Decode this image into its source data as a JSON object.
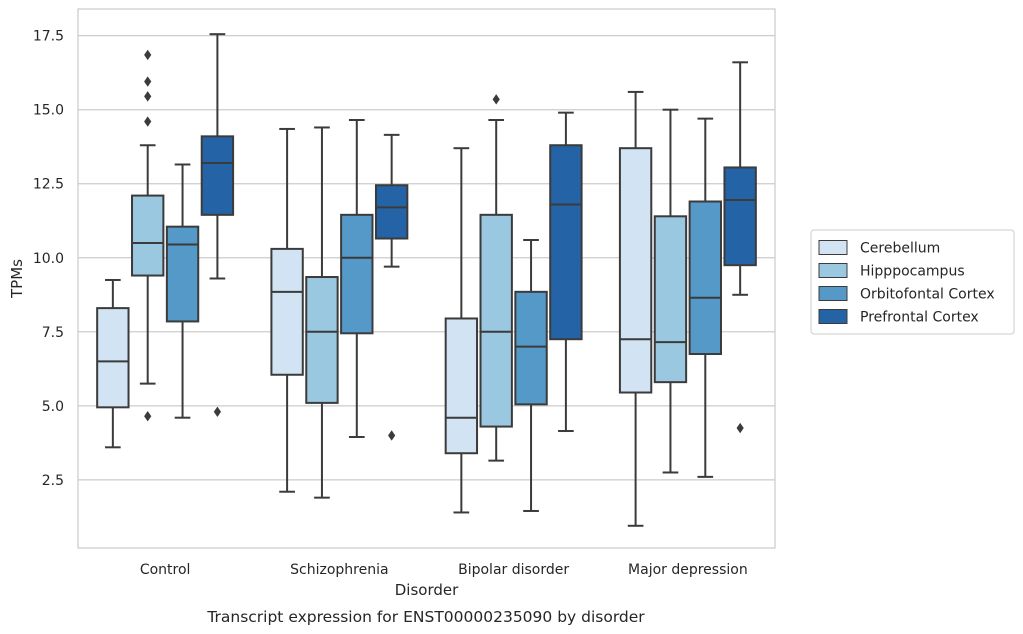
{
  "chart_data": {
    "type": "box",
    "title": "",
    "caption": "Transcript expression for ENST00000235090 by disorder",
    "xlabel": "Disorder",
    "ylabel": "TPMs",
    "ylim": [
      0.2,
      18.4
    ],
    "yticks": [
      2.5,
      5.0,
      7.5,
      10.0,
      12.5,
      15.0,
      17.5
    ],
    "ytick_labels": [
      "2.5",
      "5.0",
      "7.5",
      "10.0",
      "12.5",
      "15.0",
      "17.5"
    ],
    "grid": true,
    "legend_position": "right",
    "categories": [
      "Control",
      "Schizophrenia",
      "Bipolar disorder",
      "Major depression"
    ],
    "series": [
      {
        "name": "Cerebellum",
        "color": "#d2e3f3",
        "boxes": [
          {
            "whisker_low": 3.6,
            "q1": 4.95,
            "median": 6.5,
            "q3": 8.3,
            "whisker_high": 9.25,
            "outliers": []
          },
          {
            "whisker_low": 2.1,
            "q1": 6.05,
            "median": 8.85,
            "q3": 10.3,
            "whisker_high": 14.35,
            "outliers": []
          },
          {
            "whisker_low": 1.4,
            "q1": 3.4,
            "median": 4.6,
            "q3": 7.95,
            "whisker_high": 13.7,
            "outliers": []
          },
          {
            "whisker_low": 0.95,
            "q1": 5.45,
            "median": 7.25,
            "q3": 13.7,
            "whisker_high": 15.6,
            "outliers": []
          }
        ]
      },
      {
        "name": "Hipppocampus",
        "color": "#9ac8e0",
        "boxes": [
          {
            "whisker_low": 5.75,
            "q1": 9.4,
            "median": 10.5,
            "q3": 12.1,
            "whisker_high": 13.8,
            "outliers": [
              4.65,
              14.6,
              15.45,
              15.95,
              16.85
            ]
          },
          {
            "whisker_low": 1.9,
            "q1": 5.1,
            "median": 7.5,
            "q3": 9.35,
            "whisker_high": 14.4,
            "outliers": []
          },
          {
            "whisker_low": 3.15,
            "q1": 4.3,
            "median": 7.5,
            "q3": 11.45,
            "whisker_high": 14.65,
            "outliers": [
              15.35
            ]
          },
          {
            "whisker_low": 2.75,
            "q1": 5.8,
            "median": 7.15,
            "q3": 11.4,
            "whisker_high": 15.0,
            "outliers": []
          }
        ]
      },
      {
        "name": "Orbitofontal Cortex",
        "color": "#5499c7",
        "boxes": [
          {
            "whisker_low": 4.6,
            "q1": 7.85,
            "median": 10.45,
            "q3": 11.05,
            "whisker_high": 13.15,
            "outliers": []
          },
          {
            "whisker_low": 3.95,
            "q1": 7.45,
            "median": 10.0,
            "q3": 11.45,
            "whisker_high": 14.65,
            "outliers": []
          },
          {
            "whisker_low": 1.45,
            "q1": 5.05,
            "median": 7.0,
            "q3": 8.85,
            "whisker_high": 10.6,
            "outliers": []
          },
          {
            "whisker_low": 2.6,
            "q1": 6.75,
            "median": 8.65,
            "q3": 11.9,
            "whisker_high": 14.7,
            "outliers": []
          }
        ]
      },
      {
        "name": "Prefrontal Cortex",
        "color": "#2463a6",
        "boxes": [
          {
            "whisker_low": 9.3,
            "q1": 11.45,
            "median": 13.2,
            "q3": 14.1,
            "whisker_high": 17.55,
            "outliers": [
              4.8
            ]
          },
          {
            "whisker_low": 9.7,
            "q1": 10.65,
            "median": 11.7,
            "q3": 12.45,
            "whisker_high": 14.15,
            "outliers": [
              4.0
            ]
          },
          {
            "whisker_low": 4.15,
            "q1": 7.25,
            "median": 11.8,
            "q3": 13.8,
            "whisker_high": 14.9,
            "outliers": []
          },
          {
            "whisker_low": 8.75,
            "q1": 9.75,
            "median": 11.95,
            "q3": 13.05,
            "whisker_high": 16.6,
            "outliers": [
              4.25
            ]
          }
        ]
      }
    ]
  }
}
